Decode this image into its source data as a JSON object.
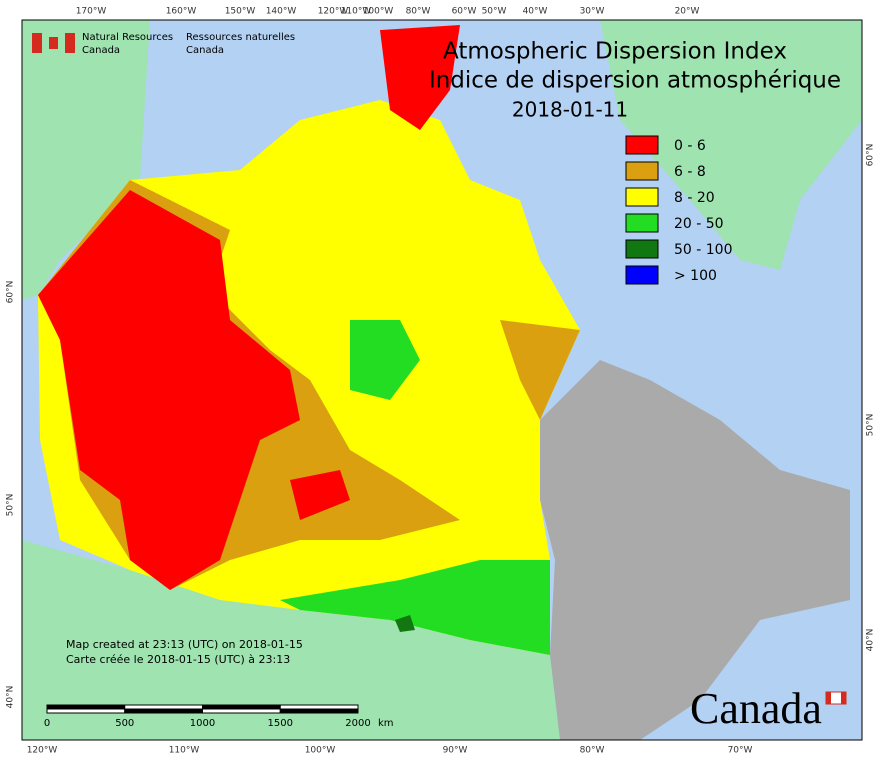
{
  "header": {
    "org_en": [
      "Natural Resources",
      "Canada"
    ],
    "org_fr": [
      "Ressources naturelles",
      "Canada"
    ]
  },
  "title": [
    "Atmospheric Dispersion Index",
    "Indice de dispersion atmosphérique",
    "2018-01-11"
  ],
  "legend": [
    {
      "label": "0 - 6",
      "color": "#ff0000"
    },
    {
      "label": "6 - 8",
      "color": "#daa010"
    },
    {
      "label": "8 - 20",
      "color": "#ffff00"
    },
    {
      "label": "20 - 50",
      "color": "#22dd22"
    },
    {
      "label": "50 - 100",
      "color": "#117711"
    },
    {
      "label": "> 100",
      "color": "#0000ff"
    }
  ],
  "top_lon_labels": [
    "170°W",
    "160°W",
    "150°W",
    "140°W",
    "120°W",
    "110°W",
    "100°W",
    "80°W",
    "60°W",
    "50°W",
    "40°W",
    "30°W",
    "20°W"
  ],
  "bottom_lon_labels": [
    "120°W",
    "110°W",
    "100°W",
    "90°W",
    "80°W",
    "70°W"
  ],
  "left_lat_labels": [
    "60°N",
    "50°N",
    "40°N"
  ],
  "right_lat_labels": [
    "60°N",
    "50°N",
    "40°N"
  ],
  "credits": [
    "Map created at 23:13 (UTC) on 2018-01-15",
    "Carte créée le 2018-01-15 (UTC) à 23:13"
  ],
  "scale_bar": {
    "labels": [
      0,
      500,
      1000,
      1500,
      2000
    ],
    "unit": "km"
  },
  "wordmark": "Canada"
}
